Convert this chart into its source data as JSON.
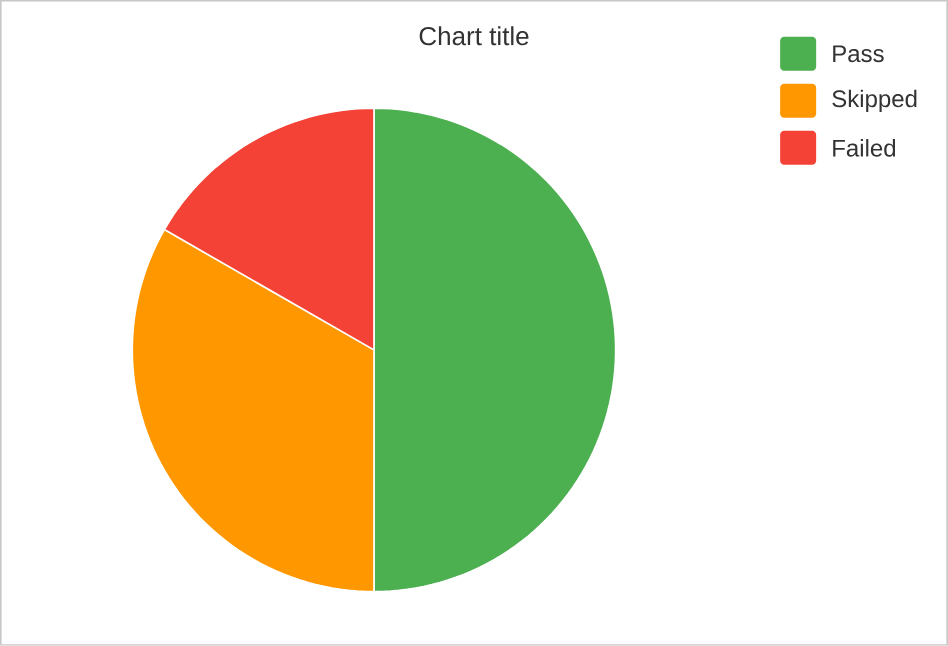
{
  "chart_data": {
    "type": "pie",
    "title": "Chart title",
    "categories": [
      "Pass",
      "Skipped",
      "Failed"
    ],
    "values": [
      50,
      33.3,
      16.7
    ],
    "colors": [
      "#4caf50",
      "#ff9800",
      "#f44336"
    ],
    "legend": "top right"
  }
}
